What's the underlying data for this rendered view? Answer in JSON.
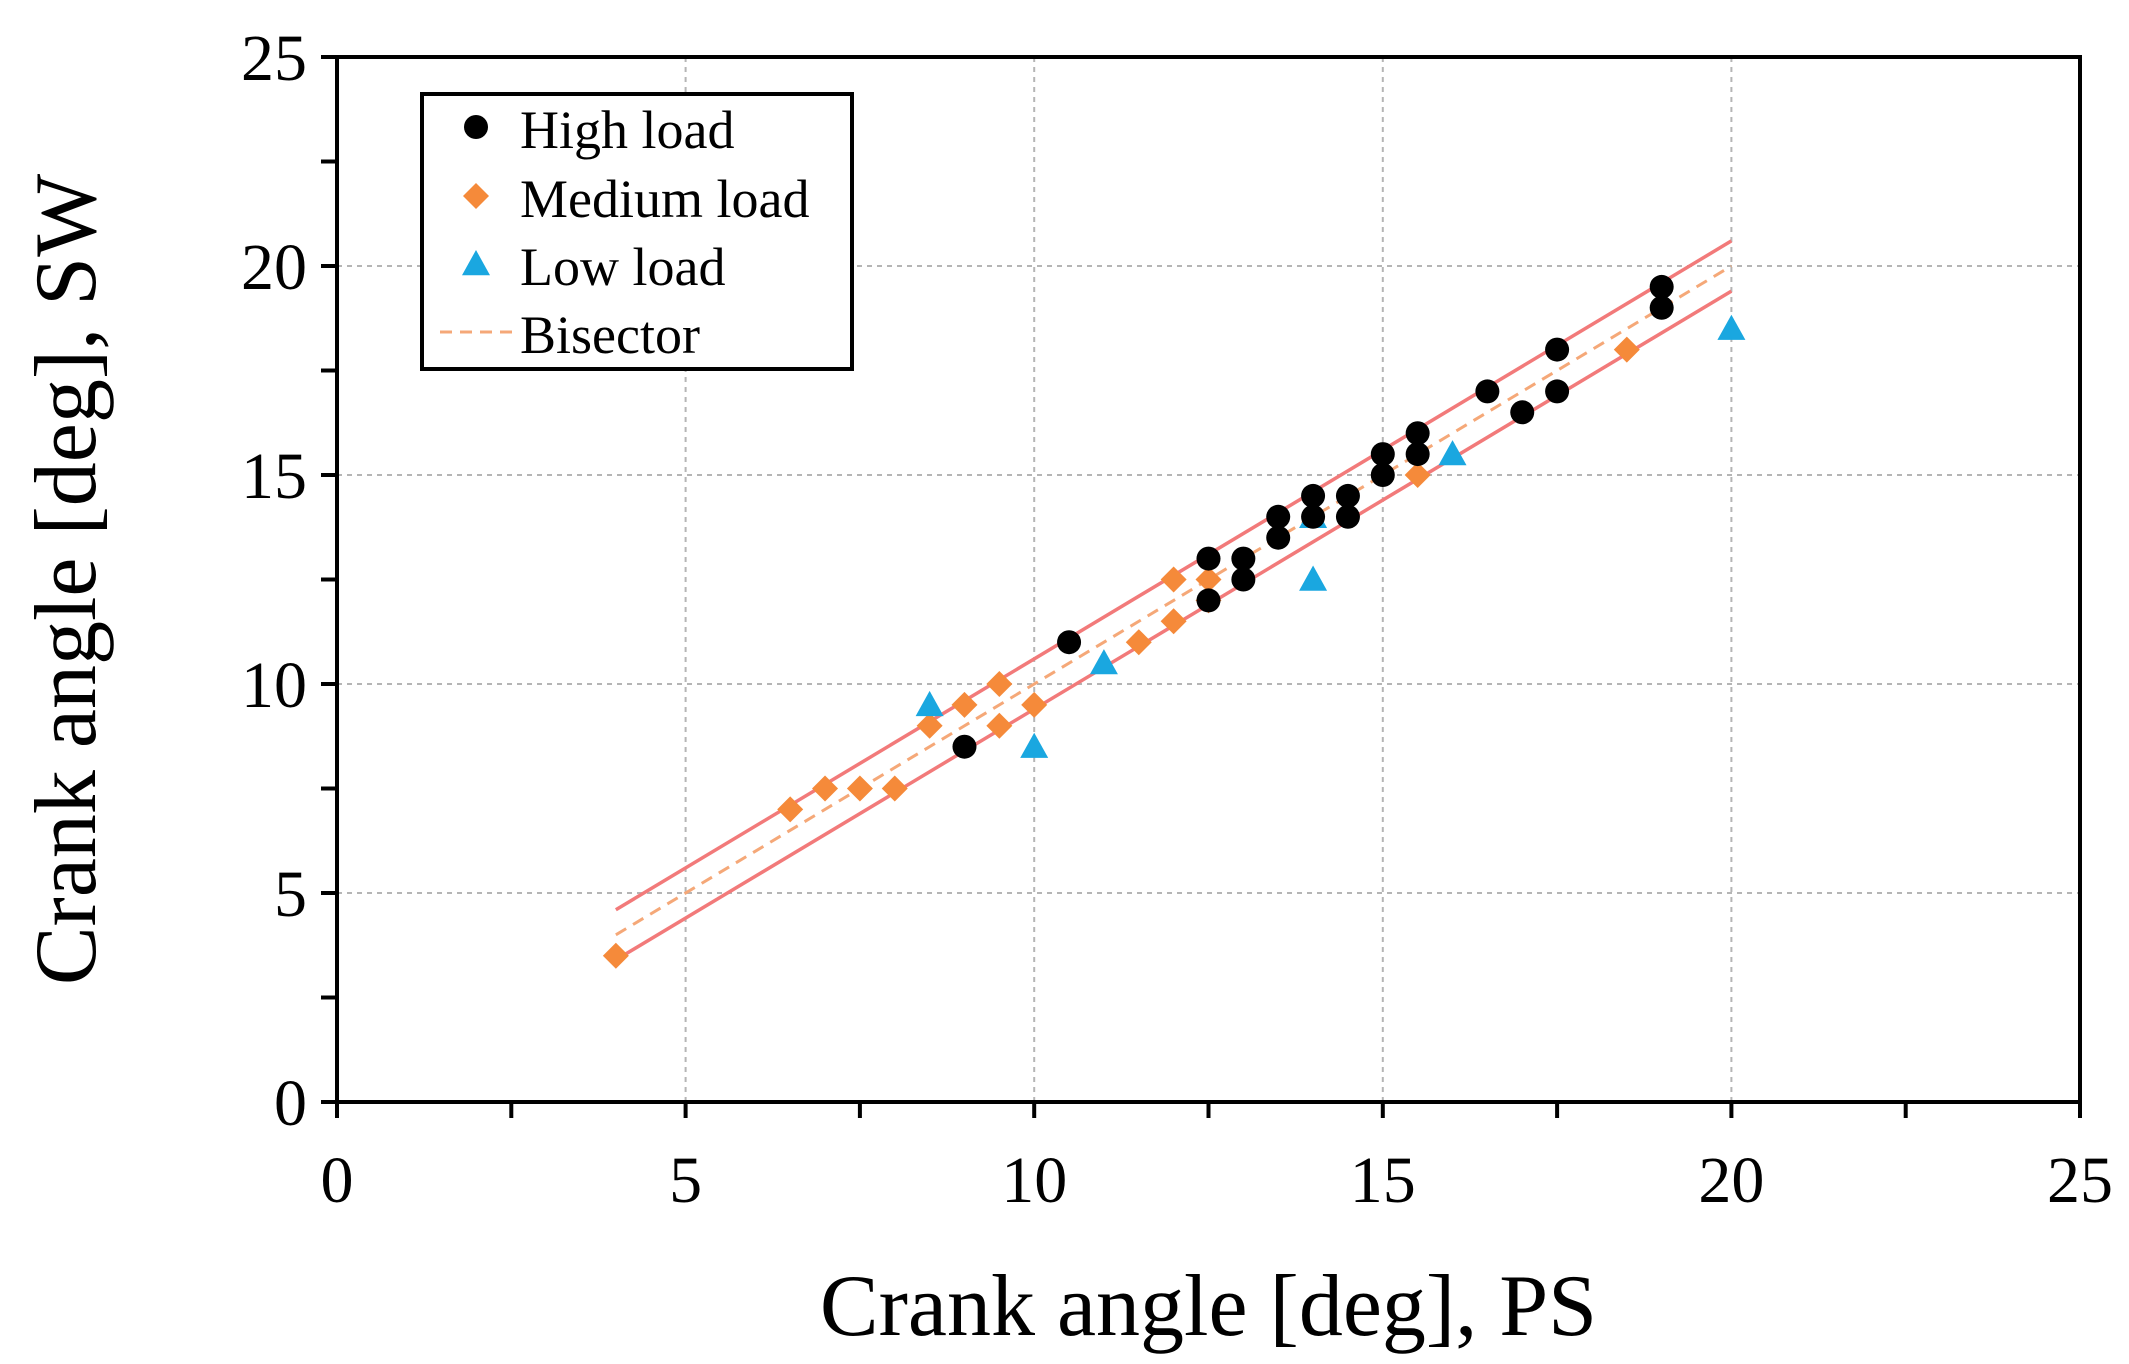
{
  "chart_data": {
    "type": "scatter",
    "xlabel": "Crank angle [deg], PS",
    "ylabel": "Crank angle [deg], SW",
    "xlim": [
      0,
      25
    ],
    "ylim": [
      0,
      25
    ],
    "xticks": [
      0,
      5,
      10,
      15,
      20,
      25
    ],
    "yticks": [
      0,
      5,
      10,
      15,
      20,
      25
    ],
    "grid": true,
    "legend_position": "top-left",
    "legend": [
      "High load",
      "Medium load",
      "Low load",
      "Bisector"
    ],
    "series": [
      {
        "name": "High load",
        "marker": "circle",
        "color": "#000000",
        "points": [
          [
            9,
            8.5
          ],
          [
            10.5,
            11
          ],
          [
            12.5,
            13
          ],
          [
            12.5,
            12
          ],
          [
            13,
            13
          ],
          [
            13,
            12.5
          ],
          [
            13.5,
            14
          ],
          [
            13.5,
            13.5
          ],
          [
            14,
            14.5
          ],
          [
            14,
            14
          ],
          [
            14.5,
            14.5
          ],
          [
            14.5,
            14
          ],
          [
            15,
            15.5
          ],
          [
            15,
            15
          ],
          [
            15.5,
            16
          ],
          [
            15.5,
            15.5
          ],
          [
            16.5,
            17
          ],
          [
            17,
            16.5
          ],
          [
            17.5,
            18
          ],
          [
            17.5,
            17
          ],
          [
            19,
            19.5
          ],
          [
            19,
            19
          ]
        ]
      },
      {
        "name": "Medium load",
        "marker": "diamond",
        "color": "#F58A3A",
        "points": [
          [
            4,
            3.5
          ],
          [
            6.5,
            7
          ],
          [
            7,
            7.5
          ],
          [
            7.5,
            7.5
          ],
          [
            8,
            7.5
          ],
          [
            8.5,
            9
          ],
          [
            9,
            9.5
          ],
          [
            9.5,
            10
          ],
          [
            9.5,
            9
          ],
          [
            10,
            9.5
          ],
          [
            11.5,
            11
          ],
          [
            12,
            12.5
          ],
          [
            12,
            11.5
          ],
          [
            12.5,
            12.5
          ],
          [
            12.5,
            12
          ],
          [
            15.5,
            15
          ],
          [
            18.5,
            18
          ]
        ]
      },
      {
        "name": "Low load",
        "marker": "triangle",
        "color": "#1AA7E0",
        "points": [
          [
            8.5,
            9.5
          ],
          [
            10,
            8.5
          ],
          [
            11,
            10.5
          ],
          [
            14,
            14
          ],
          [
            14,
            12.5
          ],
          [
            16,
            15.5
          ],
          [
            20,
            18.5
          ]
        ]
      }
    ],
    "lines": [
      {
        "name": "Bisector",
        "style": "dashed",
        "color": "#F5A878",
        "from": [
          4,
          4
        ],
        "to": [
          20,
          20
        ]
      },
      {
        "style": "solid",
        "color": "#F27A7A",
        "from": [
          4,
          4.6
        ],
        "to": [
          20,
          20.6
        ]
      },
      {
        "style": "solid",
        "color": "#F27A7A",
        "from": [
          4,
          3.4
        ],
        "to": [
          20,
          19.4
        ]
      }
    ]
  }
}
